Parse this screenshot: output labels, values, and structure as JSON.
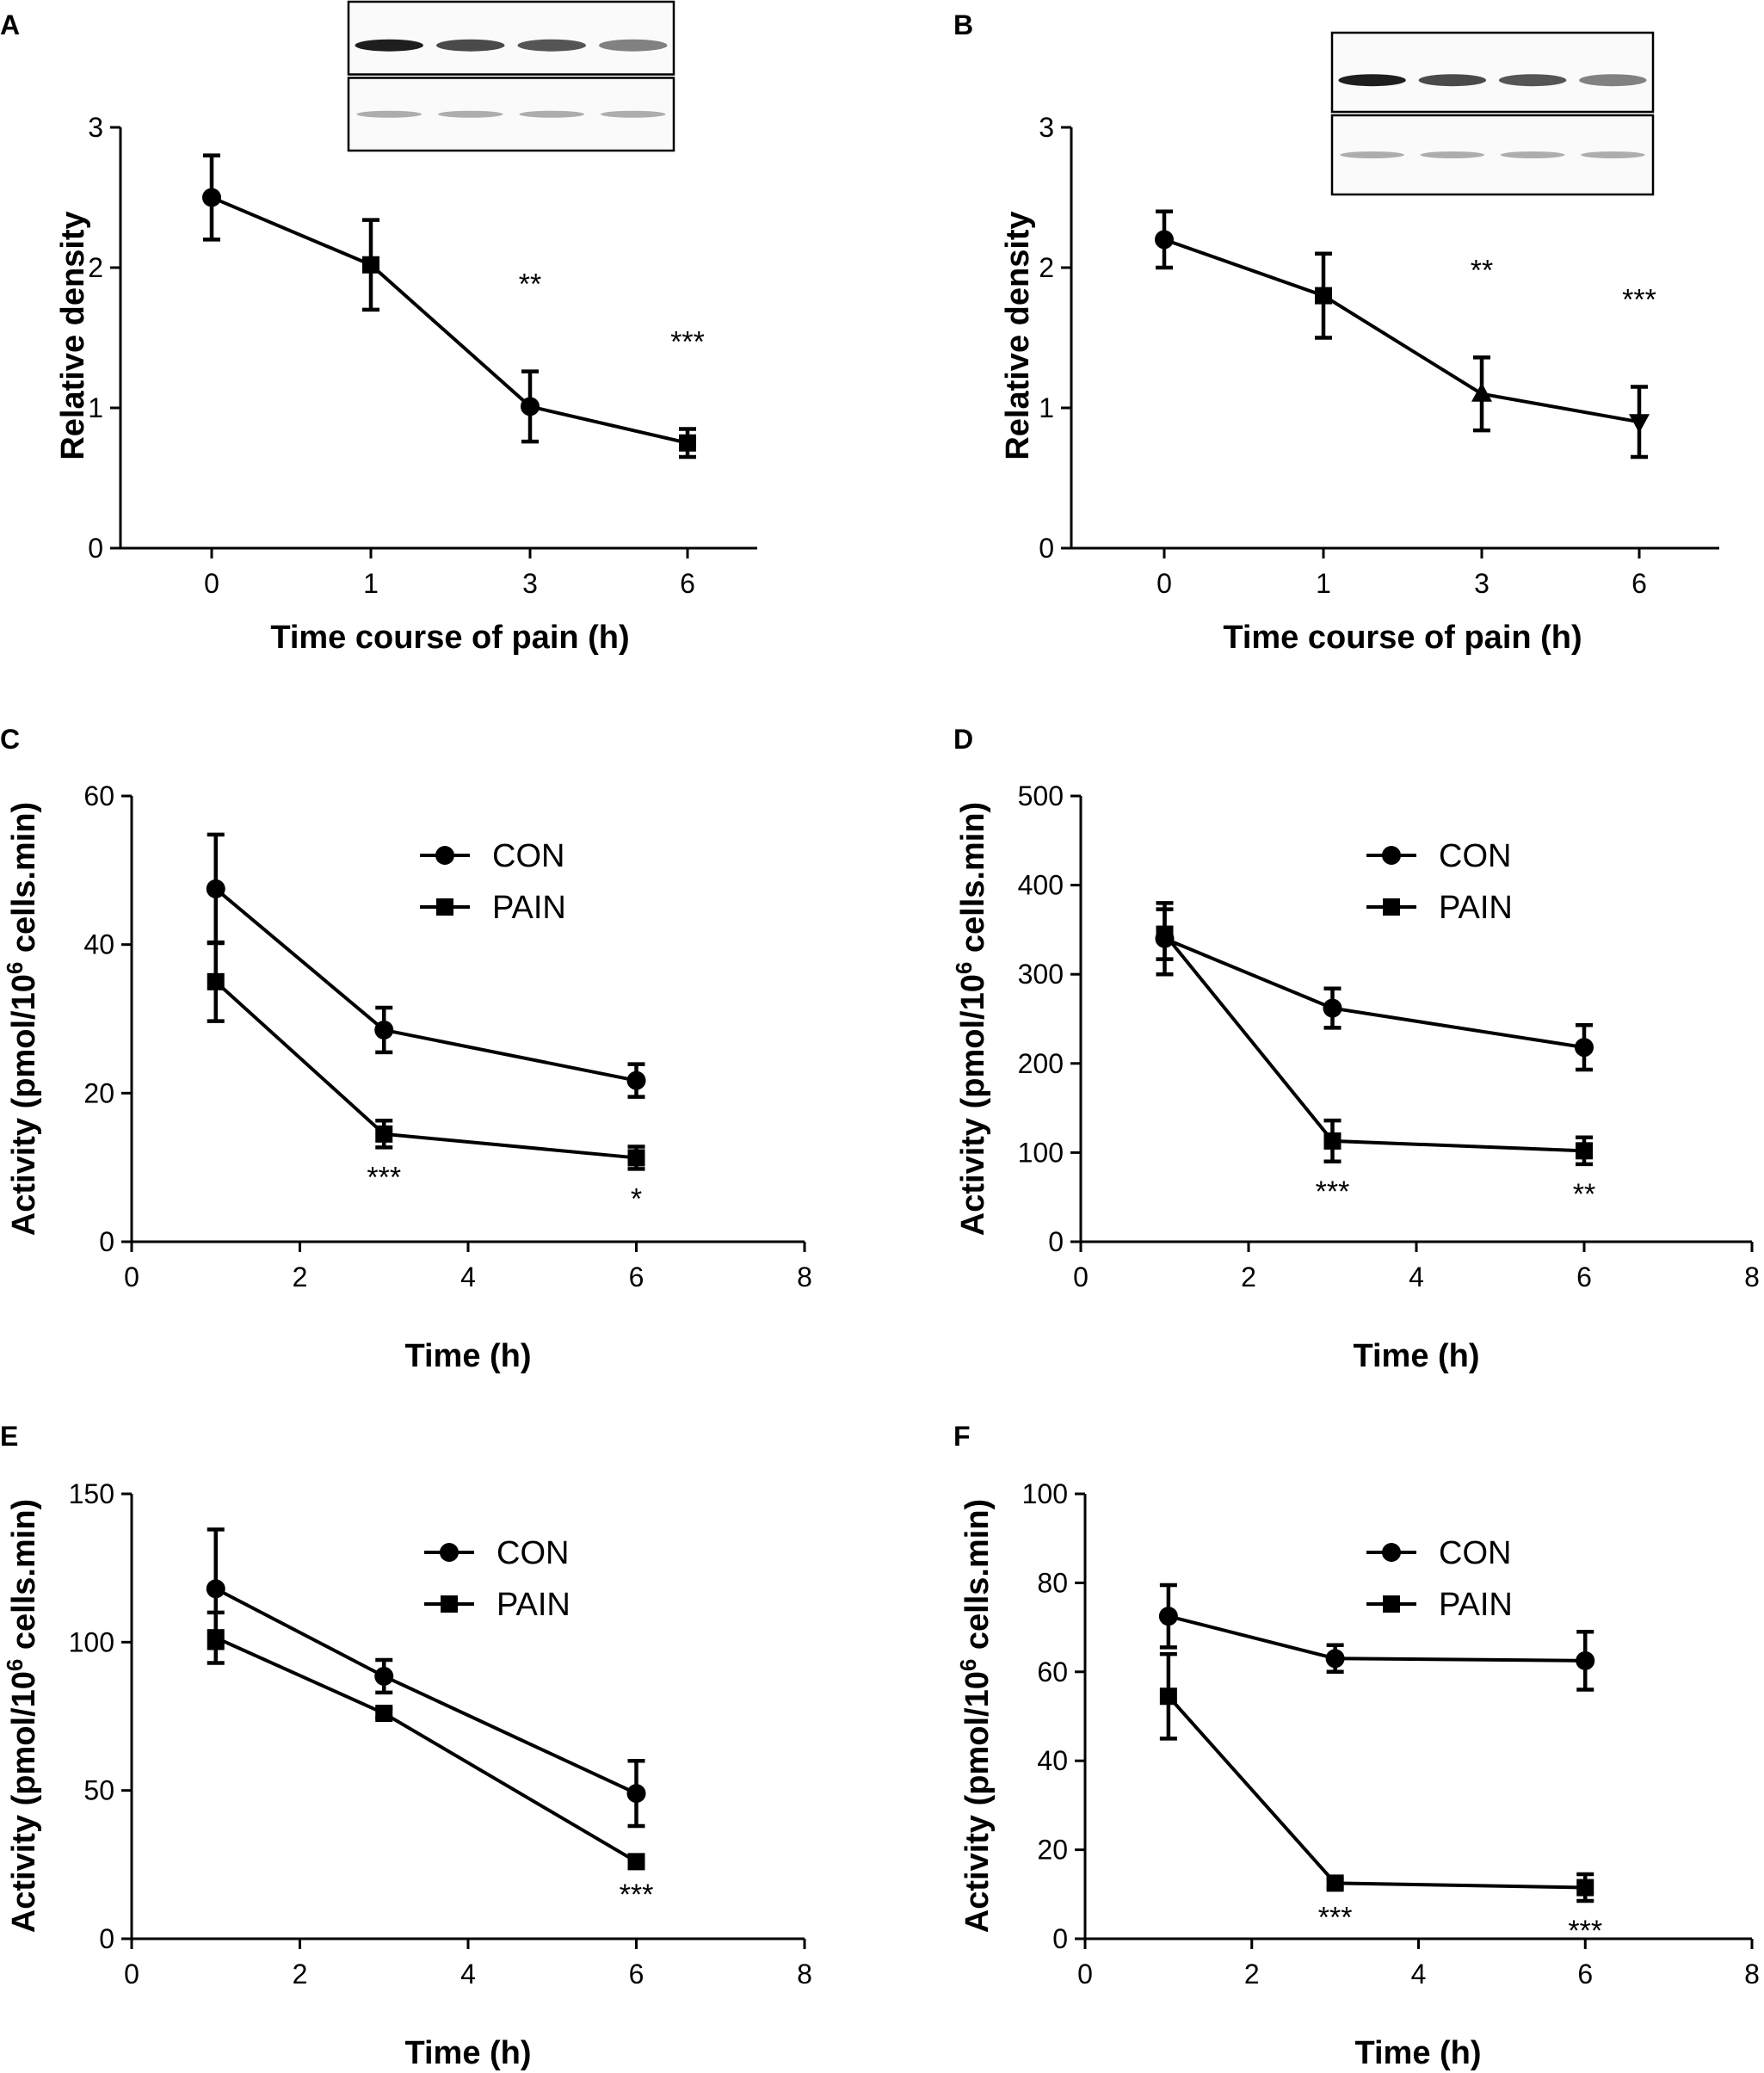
{
  "chart_data": [
    {
      "panel": "A",
      "type": "line",
      "xlabel": "Time course of pain  (h)",
      "ylabel": "Relative density",
      "x_type": "category",
      "categories": [
        "0",
        "1",
        "3",
        "6"
      ],
      "ylim": [
        0,
        3
      ],
      "yticks": [
        0,
        1,
        2,
        3
      ],
      "legend": false,
      "inset": "western-blot",
      "series": [
        {
          "name": "",
          "markers": [
            "circle",
            "square",
            "circle",
            "square"
          ],
          "values": [
            2.5,
            2.02,
            1.01,
            0.75
          ],
          "errors": [
            0.3,
            0.32,
            0.25,
            0.1
          ]
        }
      ],
      "annotations": [
        {
          "x": "3",
          "text": "**"
        },
        {
          "x": "6",
          "text": "***"
        }
      ]
    },
    {
      "panel": "B",
      "type": "line",
      "xlabel": "Time course of pain  (h)",
      "ylabel": "Relative density",
      "x_type": "category",
      "categories": [
        "0",
        "1",
        "3",
        "6"
      ],
      "ylim": [
        0,
        3
      ],
      "yticks": [
        0,
        1,
        2,
        3
      ],
      "legend": false,
      "inset": "western-blot",
      "series": [
        {
          "name": "",
          "markers": [
            "circle",
            "square",
            "triangle",
            "triangle-down"
          ],
          "values": [
            2.2,
            1.8,
            1.1,
            0.9
          ],
          "errors": [
            0.2,
            0.3,
            0.26,
            0.25
          ]
        }
      ],
      "annotations": [
        {
          "x": "3",
          "text": "**"
        },
        {
          "x": "6",
          "text": "***"
        }
      ]
    },
    {
      "panel": "C",
      "type": "line",
      "xlabel": "Time (h)",
      "ylabel": "Activity (pmol/10",
      "ylabel_sup": "6",
      "ylabel_tail": " cells.min)",
      "x_type": "numeric",
      "xlim": [
        0,
        8
      ],
      "xticks": [
        0,
        2,
        4,
        6,
        8
      ],
      "ylim": [
        0,
        60
      ],
      "yticks": [
        0,
        20,
        40,
        60
      ],
      "legend": true,
      "series": [
        {
          "name": "CON",
          "marker": "circle",
          "x": [
            1,
            3,
            6
          ],
          "values": [
            47.5,
            28.5,
            21.7
          ],
          "errors": [
            7.3,
            3.0,
            2.2
          ]
        },
        {
          "name": "PAIN",
          "marker": "square",
          "x": [
            1,
            3,
            6
          ],
          "values": [
            35.0,
            14.5,
            11.3
          ],
          "errors": [
            5.3,
            1.8,
            1.5
          ]
        }
      ],
      "annotations": [
        {
          "x": 3,
          "text": "***"
        },
        {
          "x": 6,
          "text": "*"
        }
      ]
    },
    {
      "panel": "D",
      "type": "line",
      "xlabel": "Time (h)",
      "ylabel": "Activity (pmol/10",
      "ylabel_sup": "6",
      "ylabel_tail": " cells.min)",
      "x_type": "numeric",
      "xlim": [
        0,
        8
      ],
      "xticks": [
        0,
        2,
        4,
        6,
        8
      ],
      "ylim": [
        0,
        500
      ],
      "yticks": [
        0,
        100,
        200,
        300,
        400,
        500
      ],
      "legend": true,
      "series": [
        {
          "name": "CON",
          "marker": "circle",
          "x": [
            1,
            3,
            6
          ],
          "values": [
            340,
            262,
            218
          ],
          "errors": [
            40,
            22,
            25
          ]
        },
        {
          "name": "PAIN",
          "marker": "square",
          "x": [
            1,
            3,
            6
          ],
          "values": [
            345,
            113,
            102
          ],
          "errors": [
            28,
            23,
            15
          ]
        }
      ],
      "annotations": [
        {
          "x": 3,
          "text": "***"
        },
        {
          "x": 6,
          "text": "**"
        }
      ]
    },
    {
      "panel": "E",
      "type": "line",
      "xlabel": "Time (h)",
      "ylabel": "Activity (pmol/10",
      "ylabel_sup": "6",
      "ylabel_tail": " cells.min)",
      "x_type": "numeric",
      "xlim": [
        0,
        8
      ],
      "xticks": [
        0,
        2,
        4,
        6,
        8
      ],
      "ylim": [
        0,
        150
      ],
      "yticks": [
        0,
        50,
        100,
        150
      ],
      "legend": true,
      "series": [
        {
          "name": "CON",
          "marker": "circle",
          "x": [
            1,
            3,
            6
          ],
          "values": [
            118,
            88.5,
            49
          ],
          "errors": [
            20,
            5.5,
            11
          ]
        },
        {
          "name": "PAIN",
          "marker": "square",
          "x": [
            1,
            3,
            6
          ],
          "values": [
            101.5,
            76,
            26
          ],
          "errors": [
            8.5,
            1.5,
            1
          ]
        }
      ],
      "annotations": [
        {
          "x": 6,
          "text": "***"
        }
      ]
    },
    {
      "panel": "F",
      "type": "line",
      "xlabel": "Time (h)",
      "ylabel": "Activity (pmol/10",
      "ylabel_sup": "6",
      "ylabel_tail": " cells.min)",
      "x_type": "numeric",
      "xlim": [
        0,
        8
      ],
      "xticks": [
        0,
        2,
        4,
        6,
        8
      ],
      "ylim": [
        0,
        100
      ],
      "yticks": [
        0,
        20,
        40,
        60,
        80,
        100
      ],
      "legend": true,
      "series": [
        {
          "name": "CON",
          "marker": "circle",
          "x": [
            1,
            3,
            6
          ],
          "values": [
            72.5,
            63,
            62.5
          ],
          "errors": [
            7,
            3,
            6.5
          ]
        },
        {
          "name": "PAIN",
          "marker": "square",
          "x": [
            1,
            3,
            6
          ],
          "values": [
            54.5,
            12.5,
            11.5
          ],
          "errors": [
            9.5,
            1,
            3
          ]
        }
      ],
      "annotations": [
        {
          "x": 3,
          "text": "***"
        },
        {
          "x": 6,
          "text": "***"
        }
      ]
    }
  ]
}
